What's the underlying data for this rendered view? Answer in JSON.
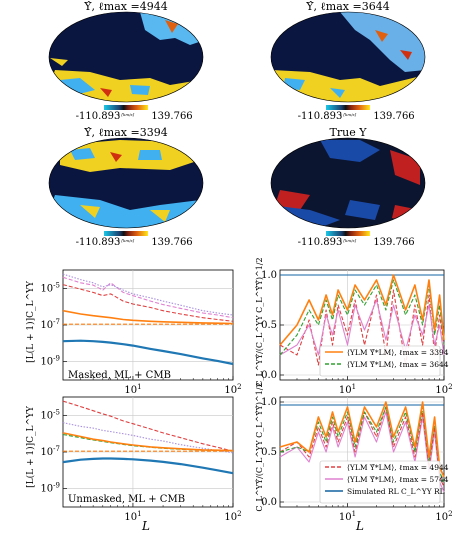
{
  "colors": {
    "map_bg": "#0a1640",
    "map_mask": "#0c1530",
    "cbar_low": "#1ac8e8",
    "cbar_mid": "#101010",
    "cbar_high": "#ffe81a",
    "line_orange": "#ff8010",
    "line_green": "#30a030",
    "line_red": "#e04040",
    "line_pink": "#e080d0",
    "line_purple": "#a890e0",
    "line_blue": "#1f77b4",
    "line_navy": "#1060a0"
  },
  "maps": [
    {
      "title": "Υ̂, ℓmax =4944",
      "cbar_min": "-110.893",
      "cbar_max": "139.766",
      "unit": "v [km/s]",
      "style": "reconstructed"
    },
    {
      "title": "Υ̂, ℓmax =3644",
      "cbar_min": "-110.893",
      "cbar_max": "139.766",
      "unit": "v [km/s]",
      "style": "reconstructed"
    },
    {
      "title": "Υ̂, ℓmax =3394",
      "cbar_min": "-110.893",
      "cbar_max": "139.766",
      "unit": "v [km/s]",
      "style": "reconstructed"
    },
    {
      "title": "True Υ",
      "cbar_min": "-110.893",
      "cbar_max": "139.766",
      "unit": "v [km/s]",
      "style": "true"
    }
  ],
  "chart_data": [
    {
      "type": "line",
      "panel": "power-spectrum-masked",
      "annotation": "Masked, ML + CMB",
      "ylabel": "[L(L + 1)]C_L^ΥΥ",
      "xlabel": "",
      "xscale": "log",
      "yscale": "log",
      "xlim": [
        2,
        100
      ],
      "ylim": [
        1e-10,
        0.0001
      ],
      "xticks": [
        "10^1",
        "10^2"
      ],
      "yticks": [
        "10^-9",
        "10^-7",
        "10^-5"
      ],
      "series": [
        {
          "color_key": "line_red",
          "dash": "dashed",
          "x": [
            2,
            3,
            4,
            5,
            6,
            8,
            10,
            15,
            20,
            30,
            50,
            70,
            100
          ],
          "y": [
            1.6e-05,
            9e-06,
            6e-06,
            4e-06,
            5e-06,
            2e-06,
            1.4e-06,
            9e-07,
            6e-07,
            4e-07,
            2.5e-07,
            2e-07,
            1.6e-07
          ]
        },
        {
          "color_key": "line_pink",
          "dash": "dashed",
          "x": [
            2,
            3,
            4,
            5,
            6,
            8,
            10,
            15,
            20,
            30,
            50,
            70,
            100
          ],
          "y": [
            4e-05,
            2e-05,
            1.5e-05,
            8e-06,
            2e-05,
            6e-06,
            4e-06,
            2e-06,
            1.3e-06,
            8e-07,
            4.5e-07,
            3.5e-07,
            2.5e-07
          ]
        },
        {
          "color_key": "line_purple",
          "dash": "dotted",
          "x": [
            2,
            3,
            4,
            5,
            6,
            8,
            10,
            15,
            20,
            30,
            50,
            70,
            100
          ],
          "y": [
            6e-05,
            3e-05,
            2e-05,
            1.2e-05,
            1.6e-05,
            8e-06,
            5e-06,
            3e-06,
            2e-06,
            1.2e-06,
            6e-07,
            4.5e-07,
            3.5e-07
          ]
        },
        {
          "color_key": "line_orange",
          "dash": "solid",
          "x": [
            2,
            3,
            4,
            5,
            6,
            8,
            10,
            15,
            20,
            30,
            50,
            70,
            100
          ],
          "y": [
            6e-07,
            4e-07,
            3.2e-07,
            2.8e-07,
            2.5e-07,
            2e-07,
            1.8e-07,
            1.6e-07,
            1.5e-07,
            1.4e-07,
            1.3e-07,
            1.25e-07,
            1.2e-07
          ]
        },
        {
          "color_key": "line_orange",
          "dash": "dashed",
          "x": [
            2,
            100
          ],
          "y": [
            1.1e-07,
            1.1e-07
          ]
        },
        {
          "color_key": "line_blue",
          "dash": "solid",
          "x": [
            2,
            3,
            4,
            5,
            6,
            8,
            10,
            15,
            20,
            30,
            50,
            70,
            100
          ],
          "y": [
            1.3e-08,
            1.4e-08,
            1.3e-08,
            1.2e-08,
            1.1e-08,
            9e-09,
            7.5e-09,
            5e-09,
            3.8e-09,
            2.6e-09,
            1.5e-09,
            1.1e-09,
            7.5e-10
          ]
        }
      ]
    },
    {
      "type": "line",
      "panel": "correlation-masked",
      "ylabel": "C_L^ΥΥ̂/(C_L^ΥΥ C_L^Υ̂Υ̂)^1/2",
      "xlabel": "",
      "xscale": "log",
      "yscale": "linear",
      "xlim": [
        2,
        100
      ],
      "ylim": [
        -0.05,
        1.05
      ],
      "xticks": [
        "10^1",
        "10^2"
      ],
      "yticks": [
        "0.0",
        "0.5",
        "1.0"
      ],
      "legend": [
        {
          "label": "⟨ΥLM Υ̂*LM⟩, ℓmax = 3394",
          "color_key": "line_orange",
          "dash": "solid"
        },
        {
          "label": "⟨ΥLM Υ̂*LM⟩, ℓmax = 3644",
          "color_key": "line_green",
          "dash": "dashed"
        }
      ],
      "series": [
        {
          "color_key": "line_navy",
          "dash": "solid",
          "x": [
            2,
            100
          ],
          "y": [
            1.0,
            1.0
          ]
        },
        {
          "color_key": "line_red",
          "dash": "dashed",
          "x": [
            2,
            3,
            4,
            5,
            6,
            7,
            8,
            10,
            12,
            15,
            20,
            25,
            30,
            40,
            50,
            60,
            70,
            80,
            90,
            100
          ],
          "y": [
            0.3,
            0.2,
            0.55,
            0.1,
            0.65,
            0.3,
            0.7,
            0.4,
            0.75,
            0.3,
            0.8,
            0.2,
            0.85,
            0.1,
            0.7,
            0.3,
            0.8,
            0.2,
            0.6,
            0.3
          ]
        },
        {
          "color_key": "line_pink",
          "dash": "solid",
          "x": [
            2,
            3,
            4,
            5,
            6,
            7,
            8,
            10,
            12,
            15,
            20,
            25,
            30,
            40,
            50,
            60,
            70,
            80,
            90,
            100
          ],
          "y": [
            0.2,
            0.3,
            0.5,
            0.2,
            0.6,
            0.4,
            0.65,
            0.3,
            0.7,
            0.45,
            0.75,
            0.35,
            0.7,
            0.25,
            0.6,
            0.4,
            0.7,
            0.3,
            0.5,
            0.2
          ]
        },
        {
          "color_key": "line_green",
          "dash": "dashed",
          "x": [
            2,
            3,
            4,
            5,
            6,
            7,
            8,
            10,
            12,
            15,
            20,
            25,
            30,
            40,
            50,
            60,
            70,
            80,
            90,
            100
          ],
          "y": [
            0.2,
            0.4,
            0.65,
            0.5,
            0.75,
            0.55,
            0.8,
            0.6,
            0.85,
            0.7,
            0.9,
            0.65,
            0.95,
            0.6,
            0.8,
            0.5,
            0.9,
            0.4,
            0.7,
            0.3
          ]
        },
        {
          "color_key": "line_orange",
          "dash": "solid",
          "x": [
            2,
            3,
            4,
            5,
            6,
            7,
            8,
            10,
            12,
            15,
            20,
            25,
            30,
            40,
            50,
            60,
            70,
            80,
            90,
            100
          ],
          "y": [
            0.3,
            0.5,
            0.75,
            0.55,
            0.8,
            0.6,
            0.85,
            0.65,
            0.9,
            0.75,
            0.95,
            0.7,
            1.0,
            0.65,
            0.9,
            0.55,
            0.95,
            0.45,
            0.8,
            0.35
          ]
        }
      ]
    },
    {
      "type": "line",
      "panel": "power-spectrum-unmasked",
      "annotation": "Unmasked, ML + CMB",
      "ylabel": "[L(L + 1)]C_L^ΥΥ",
      "xlabel": "L",
      "xscale": "log",
      "yscale": "log",
      "xlim": [
        2,
        100
      ],
      "ylim": [
        1e-10,
        0.0001
      ],
      "xticks": [
        "10^1",
        "10^2"
      ],
      "yticks": [
        "10^-9",
        "10^-7",
        "10^-5"
      ],
      "series": [
        {
          "color_key": "line_red",
          "dash": "dashed",
          "x": [
            2,
            3,
            4,
            5,
            6,
            8,
            10,
            15,
            20,
            30,
            50,
            70,
            100
          ],
          "y": [
            6e-05,
            3e-05,
            1.8e-05,
            1.2e-05,
            9e-06,
            5e-06,
            3.5e-06,
            1.8e-06,
            1.1e-06,
            6e-07,
            2.8e-07,
            1.8e-07,
            1.1e-07
          ]
        },
        {
          "color_key": "line_purple",
          "dash": "dotted",
          "x": [
            2,
            3,
            4,
            5,
            6,
            8,
            10,
            15,
            20,
            30,
            50,
            70,
            100
          ],
          "y": [
            4e-06,
            2.5e-06,
            2e-06,
            1.5e-06,
            1.3e-06,
            1e-06,
            8e-07,
            5e-07,
            4e-07,
            2.5e-07,
            1.6e-07,
            1.2e-07,
            9e-08
          ]
        },
        {
          "color_key": "line_green",
          "dash": "dashed",
          "x": [
            2,
            3,
            4,
            5,
            6,
            8,
            10,
            15,
            20,
            30,
            50,
            70,
            100
          ],
          "y": [
            9e-07,
            6e-07,
            4.5e-07,
            3.8e-07,
            3.2e-07,
            2.6e-07,
            2.2e-07,
            1.8e-07,
            1.6e-07,
            1.4e-07,
            1.25e-07,
            1.2e-07,
            1.15e-07
          ]
        },
        {
          "color_key": "line_orange",
          "dash": "solid",
          "x": [
            2,
            3,
            4,
            5,
            6,
            8,
            10,
            15,
            20,
            30,
            50,
            70,
            100
          ],
          "y": [
            1.1e-06,
            7e-07,
            5e-07,
            4.2e-07,
            3.5e-07,
            2.8e-07,
            2.4e-07,
            1.9e-07,
            1.7e-07,
            1.5e-07,
            1.3e-07,
            1.25e-07,
            1.2e-07
          ]
        },
        {
          "color_key": "line_orange",
          "dash": "dashed",
          "x": [
            2,
            100
          ],
          "y": [
            1.1e-07,
            1.1e-07
          ]
        },
        {
          "color_key": "line_blue",
          "dash": "solid",
          "x": [
            2,
            3,
            4,
            5,
            6,
            8,
            10,
            15,
            20,
            30,
            50,
            70,
            100
          ],
          "y": [
            2.8e-08,
            3.8e-08,
            4.2e-08,
            4.4e-08,
            4.4e-08,
            4.2e-08,
            4e-08,
            3.4e-08,
            2.9e-08,
            2.2e-08,
            1.4e-08,
            1e-08,
            7e-09
          ]
        }
      ]
    },
    {
      "type": "line",
      "panel": "correlation-unmasked",
      "ylabel": "C_L^ΥΥ̂/(C_L^ΥΥ C_L^Υ̂Υ̂)^1/2",
      "xlabel": "L",
      "xscale": "log",
      "yscale": "linear",
      "xlim": [
        2,
        100
      ],
      "ylim": [
        -0.05,
        1.05
      ],
      "xticks": [
        "10^1",
        "10^2"
      ],
      "yticks": [
        "0.0",
        "0.5",
        "1.0"
      ],
      "legend": [
        {
          "label": "⟨ΥLM Υ̂*LM⟩, ℓmax = 4944",
          "color_key": "line_red",
          "dash": "dashed"
        },
        {
          "label": "⟨ΥLM Υ̂*LM⟩, ℓmax = 5744",
          "color_key": "line_pink",
          "dash": "solid"
        },
        {
          "label": "Simulated RL C_L^ΥΥ RL",
          "color_key": "line_navy",
          "dash": "solid"
        }
      ],
      "series": [
        {
          "color_key": "line_navy",
          "dash": "solid",
          "x": [
            2,
            100
          ],
          "y": [
            0.97,
            0.97
          ]
        },
        {
          "color_key": "line_pink",
          "dash": "solid",
          "x": [
            2,
            3,
            4,
            5,
            6,
            7,
            8,
            10,
            12,
            15,
            20,
            25,
            30,
            40,
            50,
            60,
            70,
            80,
            90,
            100
          ],
          "y": [
            0.45,
            0.55,
            0.4,
            0.7,
            0.5,
            0.75,
            0.55,
            0.8,
            0.45,
            0.85,
            0.6,
            0.9,
            0.5,
            0.8,
            0.4,
            0.85,
            0.3,
            0.7,
            0.2,
            0.1
          ]
        },
        {
          "color_key": "line_red",
          "dash": "dashed",
          "x": [
            2,
            3,
            4,
            5,
            6,
            7,
            8,
            10,
            12,
            15,
            20,
            25,
            30,
            40,
            50,
            60,
            70,
            80,
            90,
            100
          ],
          "y": [
            0.5,
            0.6,
            0.45,
            0.75,
            0.55,
            0.8,
            0.6,
            0.85,
            0.5,
            0.9,
            0.65,
            0.95,
            0.55,
            0.85,
            0.45,
            0.9,
            0.35,
            0.75,
            0.25,
            0.15
          ]
        },
        {
          "color_key": "line_green",
          "dash": "dashed",
          "x": [
            2,
            3,
            4,
            5,
            6,
            7,
            8,
            10,
            12,
            15,
            20,
            25,
            30,
            40,
            50,
            60,
            70,
            80,
            90,
            100
          ],
          "y": [
            0.5,
            0.55,
            0.5,
            0.8,
            0.6,
            0.85,
            0.65,
            0.9,
            0.55,
            0.9,
            0.7,
            0.95,
            0.6,
            0.9,
            0.5,
            0.95,
            0.4,
            0.8,
            0.3,
            0.2
          ]
        },
        {
          "color_key": "line_orange",
          "dash": "solid",
          "x": [
            2,
            3,
            4,
            5,
            6,
            7,
            8,
            10,
            12,
            15,
            20,
            25,
            30,
            40,
            50,
            60,
            70,
            80,
            90,
            100
          ],
          "y": [
            0.55,
            0.6,
            0.5,
            0.85,
            0.65,
            0.9,
            0.7,
            0.95,
            0.6,
            0.95,
            0.75,
            1.0,
            0.65,
            0.95,
            0.55,
            1.0,
            0.45,
            0.85,
            0.35,
            0.25
          ]
        }
      ]
    }
  ]
}
